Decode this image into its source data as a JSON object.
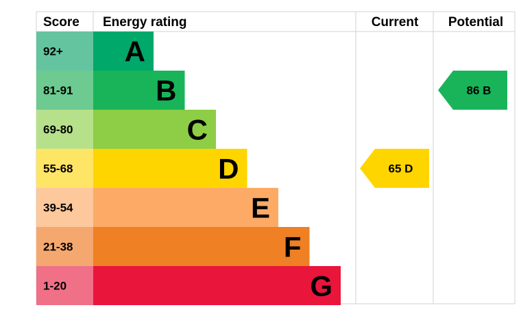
{
  "headers": {
    "score": "Score",
    "energy_rating": "Energy rating",
    "current": "Current",
    "potential": "Potential"
  },
  "bands": [
    {
      "score": "92+",
      "letter": "A",
      "color": "#00a869",
      "score_bg": "#64c4a0"
    },
    {
      "score": "81-91",
      "letter": "B",
      "color": "#19b459",
      "score_bg": "#6dca90"
    },
    {
      "score": "69-80",
      "letter": "C",
      "color": "#8dce46",
      "score_bg": "#b6e08a"
    },
    {
      "score": "55-68",
      "letter": "D",
      "color": "#ffd500",
      "score_bg": "#ffe566"
    },
    {
      "score": "39-54",
      "letter": "E",
      "color": "#fcaa65",
      "score_bg": "#fdc89c"
    },
    {
      "score": "21-38",
      "letter": "F",
      "color": "#ef8023",
      "score_bg": "#f4a870"
    },
    {
      "score": "1-20",
      "letter": "G",
      "color": "#e9153b",
      "score_bg": "#f07088"
    }
  ],
  "current": {
    "value": 65,
    "letter": "D",
    "label": "65  D",
    "color": "#ffd500"
  },
  "potential": {
    "value": 86,
    "letter": "B",
    "label": "86  B",
    "color": "#19b459"
  },
  "chart_data": {
    "type": "table",
    "columns": [
      "Score",
      "Energy rating",
      "Current",
      "Potential"
    ],
    "rows": [
      [
        "92+",
        "A"
      ],
      [
        "81-91",
        "B"
      ],
      [
        "69-80",
        "C"
      ],
      [
        "55-68",
        "D"
      ],
      [
        "39-54",
        "E"
      ],
      [
        "21-38",
        "F"
      ],
      [
        "1-20",
        "G"
      ]
    ],
    "current": {
      "value": 65,
      "band": "D"
    },
    "potential": {
      "value": 86,
      "band": "B"
    }
  }
}
